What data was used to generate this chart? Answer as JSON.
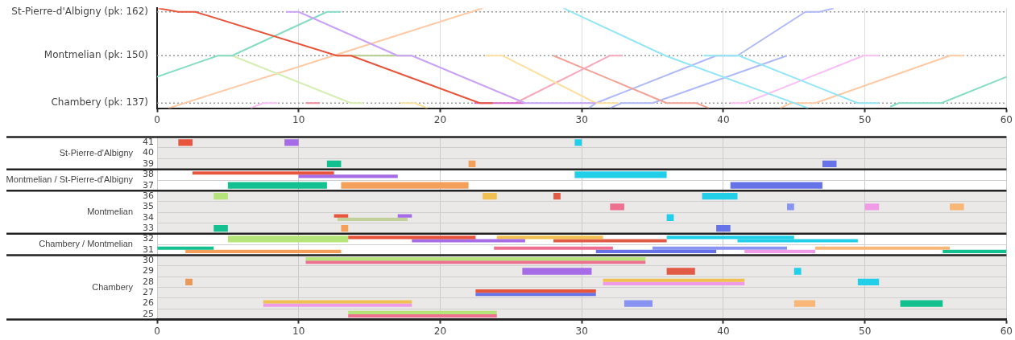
{
  "chart_data": [
    {
      "type": "line",
      "xlim": [
        0,
        60
      ],
      "xticks": [
        0,
        10,
        20,
        30,
        40,
        50,
        60
      ],
      "ylim": [
        135.6,
        163
      ],
      "yticks": [
        {
          "value": 137,
          "label": "Chambery (pk: 137)"
        },
        {
          "value": 150,
          "label": "Montmelian (pk: 150)"
        },
        {
          "value": 162,
          "label": "St-Pierre-d'Albigny (pk: 162)"
        }
      ],
      "grid": true,
      "marker": "none",
      "series": [
        {
          "color": "#e8553d",
          "x": [
            0.1,
            1.5,
            2.7,
            12.7,
            13.7,
            22.8,
            23.7
          ],
          "values": [
            163,
            162,
            162,
            150,
            150,
            137,
            137
          ]
        },
        {
          "color": "#c9a3f5",
          "x": [
            9.1,
            10,
            17,
            18,
            26,
            31
          ],
          "values": [
            162,
            162,
            150,
            150,
            137,
            137
          ]
        },
        {
          "color": "#86dcc4",
          "x": [
            0,
            4.3,
            5.3,
            12,
            13
          ],
          "values": [
            144.2,
            150,
            150,
            162,
            162
          ]
        },
        {
          "color": "#d6eeb3",
          "x": [
            4.3,
            5.3,
            13.7,
            14.6
          ],
          "values": [
            150,
            150,
            137,
            137
          ]
        },
        {
          "color": "#fdcaa5",
          "x": [
            0.8,
            23
          ],
          "values": [
            135.6,
            163
          ]
        },
        {
          "color": "#b5cc8a",
          "x": [
            12.7,
            18
          ],
          "values": [
            150,
            150
          ]
        },
        {
          "color": "#d366cc",
          "x": [
            22.4,
            26
          ],
          "values": [
            137,
            137
          ]
        },
        {
          "color": "#fde0a0",
          "x": [
            23.2,
            24.4,
            31,
            32.6
          ],
          "values": [
            150,
            150,
            137,
            137
          ]
        },
        {
          "color": "#fde0a0",
          "x": [
            17.2,
            18.2,
            19.1
          ],
          "values": [
            137,
            137,
            135.6
          ]
        },
        {
          "color": "#f9c0f5",
          "x": [
            6.6,
            7.5,
            8.5
          ],
          "values": [
            135.6,
            137,
            137
          ]
        },
        {
          "color": "#f08c9c",
          "x": [
            10.5,
            11.5
          ],
          "values": [
            137,
            137
          ]
        },
        {
          "color": "#f6a9bb",
          "x": [
            25.3,
            32,
            32.9
          ],
          "values": [
            137,
            150,
            150
          ]
        },
        {
          "color": "#f2a397",
          "x": [
            28,
            36,
            38.1,
            39
          ],
          "values": [
            150,
            137,
            137,
            135.6
          ]
        },
        {
          "color": "#94e6f4",
          "x": [
            28.7,
            35.9,
            46
          ],
          "values": [
            163,
            150,
            135.6
          ]
        },
        {
          "color": "#94e6f4",
          "x": [
            38.6,
            41.1,
            49.5,
            51
          ],
          "values": [
            150,
            150,
            137,
            137
          ]
        },
        {
          "color": "#b0b9f7",
          "x": [
            30.5,
            31,
            39.5,
            41,
            45.8,
            46.8,
            47.8
          ],
          "values": [
            135.6,
            137,
            150,
            150,
            162,
            162,
            163
          ]
        },
        {
          "color": "#b0b9f7",
          "x": [
            32,
            32.8,
            35,
            44.5
          ],
          "values": [
            135.6,
            137,
            137,
            150
          ]
        },
        {
          "color": "#f9c0f5",
          "x": [
            40.5,
            41.5,
            49.9,
            51
          ],
          "values": [
            137,
            137,
            150,
            150
          ]
        },
        {
          "color": "#fdcaa5",
          "x": [
            44,
            44.8,
            46.5,
            56,
            57
          ],
          "values": [
            135.6,
            137,
            137,
            150,
            150
          ]
        },
        {
          "color": "#86dcc4",
          "x": [
            51.8,
            52.4,
            55.4,
            60
          ],
          "values": [
            136,
            137,
            137,
            144.2
          ]
        }
      ]
    },
    {
      "type": "bar",
      "orientation": "horizontal",
      "categories": [
        "41",
        "40",
        "39",
        "38",
        "37",
        "36",
        "35",
        "34",
        "33",
        "32",
        "31",
        "30",
        "29",
        "28",
        "27",
        "26",
        "25"
      ],
      "xlim": [
        0,
        60
      ],
      "xticks": [
        0,
        10,
        20,
        30,
        40,
        50,
        60
      ],
      "grid": true,
      "bands": [
        {
          "axis": "y",
          "from": "41",
          "to": "39",
          "color": "#ebe9e7"
        },
        {
          "axis": "y",
          "from": "36",
          "to": "33",
          "color": "#ebe9e7"
        },
        {
          "axis": "y",
          "from": "30",
          "to": "25",
          "color": "#ebe9e7"
        }
      ],
      "annotations": [
        "St-Pierre-d'Albigny",
        "Montmelian / St-Pierre-d'Albigny",
        "Montmelian",
        "Chambery / Montmelian",
        "Chambery"
      ],
      "series": [
        {
          "color": "#e8553d",
          "values": [
            1,
            null,
            null,
            10,
            null,
            null,
            null,
            1,
            null,
            9,
            null,
            null,
            null,
            null,
            8.5,
            null,
            null
          ],
          "base": [
            1.5,
            null,
            null,
            2.5,
            null,
            null,
            null,
            12.5,
            null,
            13.5,
            null,
            null,
            null,
            null,
            22.5,
            null,
            null
          ]
        },
        {
          "color": "#a66be6",
          "values": [
            1,
            null,
            null,
            7,
            null,
            null,
            null,
            1,
            null,
            8,
            null,
            null,
            4.9,
            null,
            null,
            null,
            null
          ],
          "base": [
            9,
            null,
            null,
            10,
            null,
            null,
            null,
            17,
            null,
            18,
            null,
            null,
            25.8,
            null,
            null,
            null,
            null
          ]
        },
        {
          "color": "#13c08f",
          "values": [
            null,
            null,
            1,
            null,
            7,
            null,
            null,
            null,
            1,
            null,
            4,
            null,
            null,
            null,
            null,
            null,
            null
          ],
          "base": [
            null,
            null,
            12,
            null,
            5,
            null,
            null,
            null,
            4,
            null,
            0,
            null,
            null,
            null,
            null,
            null,
            null
          ]
        },
        {
          "color": "#b5e57a",
          "values": [
            null,
            null,
            null,
            null,
            null,
            1,
            null,
            null,
            null,
            8.5,
            null,
            null,
            null,
            null,
            null,
            null,
            10.5
          ],
          "base": [
            null,
            null,
            null,
            null,
            null,
            4,
            null,
            null,
            null,
            5,
            null,
            null,
            null,
            null,
            null,
            null,
            13.5
          ]
        },
        {
          "color": "#b5e57a",
          "values": [
            null,
            null,
            null,
            null,
            null,
            null,
            null,
            null,
            null,
            null,
            null,
            24,
            null,
            null,
            null,
            null,
            null
          ],
          "base": [
            null,
            null,
            null,
            null,
            null,
            null,
            null,
            null,
            null,
            null,
            null,
            10.5,
            null,
            null,
            null,
            null,
            null
          ]
        },
        {
          "color": "#f5a05a",
          "values": [
            null,
            null,
            0.5,
            null,
            9,
            null,
            null,
            null,
            0.5,
            null,
            11,
            null,
            null,
            null,
            null,
            null,
            null
          ],
          "base": [
            null,
            null,
            22,
            null,
            13,
            null,
            null,
            null,
            13,
            null,
            2,
            null,
            null,
            null,
            null,
            null,
            null
          ]
        },
        {
          "color": "#e8995a",
          "values": [
            null,
            null,
            null,
            null,
            null,
            null,
            null,
            null,
            null,
            null,
            null,
            null,
            null,
            0.5,
            null,
            null,
            null
          ],
          "base": [
            null,
            null,
            null,
            null,
            null,
            null,
            null,
            null,
            null,
            null,
            null,
            null,
            null,
            2,
            null,
            null,
            null
          ]
        },
        {
          "color": "#f0c050",
          "values": [
            null,
            null,
            null,
            null,
            null,
            1,
            null,
            null,
            null,
            7.5,
            null,
            null,
            null,
            10,
            null,
            null,
            null
          ],
          "base": [
            null,
            null,
            null,
            null,
            null,
            23,
            null,
            null,
            null,
            24,
            null,
            null,
            null,
            31.5,
            null,
            null,
            null
          ]
        },
        {
          "color": "#f0c050",
          "values": [
            null,
            null,
            null,
            null,
            null,
            null,
            null,
            null,
            null,
            null,
            null,
            null,
            null,
            null,
            null,
            10.5,
            null
          ],
          "base": [
            null,
            null,
            null,
            null,
            null,
            null,
            null,
            null,
            null,
            null,
            null,
            null,
            null,
            null,
            null,
            7.5,
            null
          ]
        },
        {
          "color": "#f09be8",
          "values": [
            null,
            null,
            null,
            null,
            null,
            null,
            null,
            null,
            null,
            null,
            null,
            null,
            null,
            null,
            null,
            10.5,
            null
          ],
          "base": [
            null,
            null,
            null,
            null,
            null,
            null,
            null,
            null,
            null,
            null,
            null,
            null,
            null,
            null,
            null,
            7.5,
            null
          ]
        },
        {
          "color": "#f09be8",
          "values": [
            null,
            null,
            null,
            null,
            null,
            null,
            1,
            null,
            null,
            null,
            5,
            null,
            null,
            10,
            null,
            null,
            null
          ],
          "base": [
            null,
            null,
            null,
            null,
            null,
            null,
            50,
            null,
            null,
            null,
            41.5,
            null,
            null,
            31.5,
            null,
            null,
            null
          ]
        },
        {
          "color": "#ee6f8f",
          "values": [
            null,
            null,
            null,
            null,
            null,
            null,
            null,
            null,
            null,
            null,
            null,
            24,
            null,
            null,
            null,
            null,
            null
          ],
          "base": [
            null,
            null,
            null,
            null,
            null,
            null,
            null,
            null,
            null,
            null,
            null,
            10.5,
            null,
            null,
            null,
            null,
            null
          ]
        },
        {
          "color": "#ee6f8f",
          "values": [
            null,
            null,
            null,
            null,
            null,
            null,
            1,
            null,
            null,
            null,
            8.4,
            null,
            null,
            null,
            null,
            null,
            10.5
          ],
          "base": [
            null,
            null,
            null,
            null,
            null,
            null,
            32,
            null,
            null,
            null,
            23.8,
            null,
            null,
            null,
            null,
            null,
            13.5
          ]
        },
        {
          "color": "#22cfe8",
          "values": [
            0.5,
            null,
            null,
            6.5,
            null,
            null,
            null,
            0.5,
            null,
            9,
            null,
            null,
            0.5,
            null,
            null,
            null,
            null
          ],
          "base": [
            29.5,
            null,
            null,
            29.5,
            null,
            null,
            null,
            36,
            null,
            36,
            null,
            null,
            45,
            null,
            null,
            null,
            null
          ]
        },
        {
          "color": "#22cfe8",
          "values": [
            null,
            null,
            null,
            null,
            null,
            2.5,
            null,
            null,
            null,
            8.5,
            null,
            null,
            null,
            1.5,
            null,
            null,
            null
          ],
          "base": [
            null,
            null,
            null,
            null,
            null,
            38.5,
            null,
            null,
            null,
            41,
            null,
            null,
            null,
            49.5,
            null,
            null,
            null
          ]
        },
        {
          "color": "#6673e8",
          "values": [
            null,
            null,
            1,
            null,
            6.5,
            null,
            null,
            null,
            1,
            null,
            8.5,
            null,
            null,
            null,
            8.5,
            null,
            null
          ],
          "base": [
            null,
            null,
            47,
            null,
            40.5,
            null,
            null,
            null,
            39.5,
            null,
            31,
            null,
            null,
            null,
            22.5,
            null,
            null
          ]
        },
        {
          "color": "#8993f2",
          "values": [
            null,
            null,
            null,
            null,
            null,
            null,
            0.5,
            null,
            null,
            null,
            9.5,
            null,
            null,
            null,
            null,
            2,
            null
          ],
          "base": [
            null,
            null,
            null,
            null,
            null,
            null,
            44.5,
            null,
            null,
            null,
            35,
            null,
            null,
            null,
            null,
            33,
            null
          ]
        },
        {
          "color": "#f9b777",
          "values": [
            null,
            null,
            null,
            null,
            null,
            null,
            1,
            null,
            null,
            null,
            9.5,
            null,
            null,
            null,
            null,
            1.5,
            null
          ],
          "base": [
            null,
            null,
            null,
            null,
            null,
            null,
            56,
            null,
            null,
            null,
            46.5,
            null,
            null,
            null,
            null,
            45,
            null
          ]
        },
        {
          "color": "#13c08f",
          "values": [
            null,
            null,
            null,
            null,
            null,
            null,
            null,
            null,
            null,
            null,
            4.5,
            null,
            null,
            null,
            null,
            3,
            null
          ],
          "base": [
            null,
            null,
            null,
            null,
            null,
            null,
            null,
            null,
            null,
            null,
            55.5,
            null,
            null,
            null,
            null,
            52.5,
            null
          ]
        },
        {
          "color": "#e05a45",
          "values": [
            null,
            null,
            null,
            null,
            null,
            0.5,
            null,
            null,
            null,
            8,
            null,
            null,
            2,
            null,
            null,
            null,
            null
          ],
          "base": [
            null,
            null,
            null,
            null,
            null,
            28,
            null,
            null,
            null,
            28,
            null,
            null,
            36,
            null,
            null,
            null,
            null
          ]
        },
        {
          "color": "#c2d19c",
          "values": [
            null,
            null,
            null,
            null,
            null,
            null,
            null,
            4.95,
            null,
            null,
            null,
            null,
            null,
            null,
            null,
            null,
            null
          ],
          "base": [
            null,
            null,
            null,
            null,
            null,
            null,
            null,
            12.75,
            null,
            null,
            null,
            null,
            null,
            null,
            null,
            null,
            null
          ]
        }
      ]
    }
  ]
}
